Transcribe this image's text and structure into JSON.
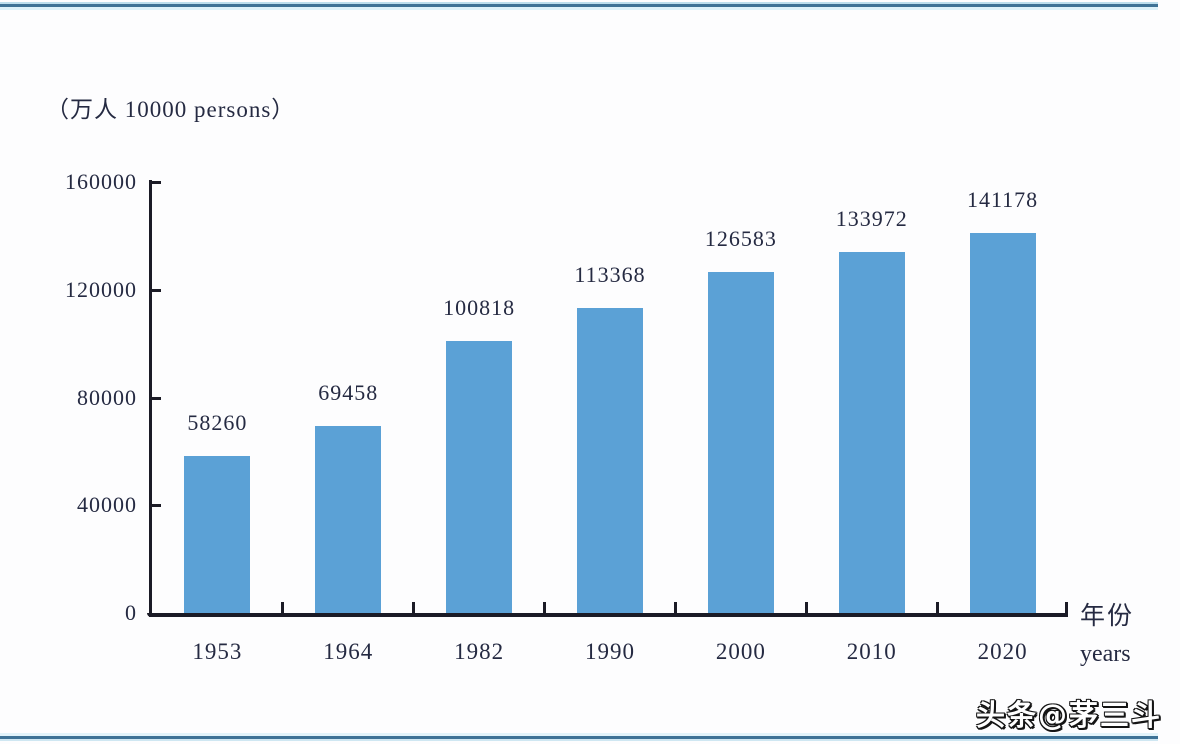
{
  "chart_data": {
    "type": "bar",
    "title": "",
    "ylabel": "（万人 10000 persons）",
    "xlabel": "年份",
    "xlabel_sub": "years",
    "categories": [
      "1953",
      "1964",
      "1982",
      "1990",
      "2000",
      "2010",
      "2020"
    ],
    "values": [
      58260,
      69458,
      100818,
      113368,
      126583,
      133972,
      141178
    ],
    "ylim": [
      0,
      160000
    ],
    "yticks": [
      0,
      40000,
      80000,
      120000,
      160000
    ],
    "bar_color": "#5ba1d6",
    "axis_color": "#1b1b26",
    "text_color": "#252a42",
    "grid": false,
    "legend": false
  },
  "page": {
    "background": "#fdfdfe",
    "border_line_color": "#3e7296"
  },
  "watermark": {
    "text": "头条@茅三斗"
  }
}
